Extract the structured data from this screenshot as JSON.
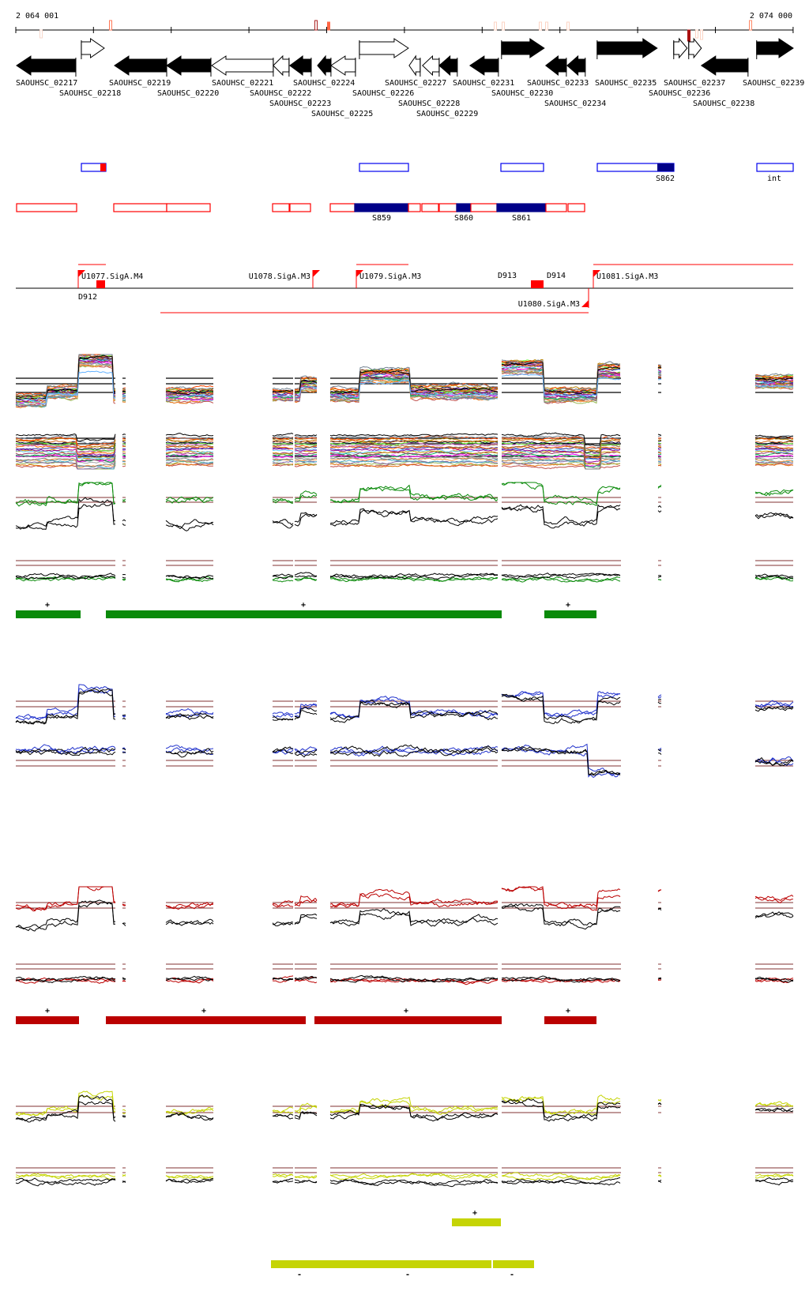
{
  "axis": {
    "start_label": "2 064 001",
    "end_label": "2 074 000",
    "start_bp": 2064001,
    "end_bp": 2074000,
    "tick_interval_bp": 1000
  },
  "genes": [
    {
      "label": "SAOUHSC_02217",
      "start": 2064011,
      "end": 2064773,
      "strand": "-",
      "filled": true
    },
    {
      "label": "SAOUHSC_02218",
      "start": 2064844,
      "end": 2065139,
      "strand": "+",
      "filled": false
    },
    {
      "label": "SAOUHSC_02219",
      "start": 2065271,
      "end": 2065942,
      "strand": "-",
      "filled": true
    },
    {
      "label": "SAOUHSC_02220",
      "start": 2065942,
      "end": 2066511,
      "strand": "-",
      "filled": true
    },
    {
      "label": "SAOUHSC_02221",
      "start": 2066521,
      "end": 2067313,
      "strand": "-",
      "filled": false
    },
    {
      "label": "SAOUHSC_02222",
      "start": 2067313,
      "end": 2067516,
      "strand": "-",
      "filled": false
    },
    {
      "label": "SAOUHSC_02223",
      "start": 2067526,
      "end": 2067801,
      "strand": "-",
      "filled": true
    },
    {
      "label": "SAOUHSC_02224",
      "start": 2067882,
      "end": 2068055,
      "strand": "-",
      "filled": true
    },
    {
      "label": "SAOUHSC_02225",
      "start": 2068055,
      "end": 2068370,
      "strand": "-",
      "filled": false
    },
    {
      "label": "SAOUHSC_02226",
      "start": 2068421,
      "end": 2069051,
      "strand": "+",
      "filled": false
    },
    {
      "label": "SAOUHSC_02227",
      "start": 2069061,
      "end": 2069203,
      "strand": "-",
      "filled": false
    },
    {
      "label": "SAOUHSC_02228",
      "start": 2069233,
      "end": 2069447,
      "strand": "-",
      "filled": false
    },
    {
      "label": "SAOUHSC_02229",
      "start": 2069447,
      "end": 2069680,
      "strand": "-",
      "filled": true
    },
    {
      "label": "SAOUHSC_02231",
      "start": 2069843,
      "end": 2070209,
      "strand": "-",
      "filled": true
    },
    {
      "label": "SAOUHSC_02230",
      "start": 2070249,
      "end": 2070798,
      "strand": "+",
      "filled": true
    },
    {
      "label": "SAOUHSC_02233",
      "start": 2070818,
      "end": 2071083,
      "strand": "-",
      "filled": true
    },
    {
      "label": "SAOUHSC_02234",
      "start": 2071093,
      "end": 2071326,
      "strand": "-",
      "filled": true
    },
    {
      "label": "SAOUHSC_02235",
      "start": 2071479,
      "end": 2072251,
      "strand": "+",
      "filled": true
    },
    {
      "label": "SAOUHSC_02236",
      "start": 2072464,
      "end": 2072637,
      "strand": "+",
      "filled": false
    },
    {
      "label": "SAOUHSC_02237",
      "start": 2072657,
      "end": 2072820,
      "strand": "+",
      "filled": false
    },
    {
      "label": "SAOUHSC_02238",
      "start": 2072820,
      "end": 2073420,
      "strand": "-",
      "filled": true
    },
    {
      "label": "SAOUHSC_02239",
      "start": 2073531,
      "end": 2074001,
      "strand": "+",
      "filled": true
    }
  ],
  "blue_regions": [
    {
      "label": "",
      "highlight": "red"
    },
    {
      "label": "",
      "highlight": ""
    },
    {
      "label": "",
      "highlight": ""
    },
    {
      "label": "S862",
      "highlight": "navy"
    },
    {
      "label": "int",
      "highlight": ""
    }
  ],
  "red_region_labels": [
    "S859",
    "S860",
    "S861"
  ],
  "promoters": [
    {
      "label": "U1077.SigA.M4",
      "strand": "+"
    },
    {
      "label": "U1078.SigA.M3",
      "strand": "+"
    },
    {
      "label": "U1079.SigA.M3",
      "strand": "+"
    },
    {
      "label": "U1081.SigA.M3",
      "strand": "+"
    },
    {
      "label": "U1080.SigA.M3",
      "strand": "-"
    }
  ],
  "terminators": [
    {
      "label": "D912"
    },
    {
      "label": "D913"
    },
    {
      "label": "D914"
    }
  ],
  "condition_groups": [
    {
      "color": "#0a8a0a",
      "bar_rows": [
        {
          "strand_label": "+",
          "count": 3
        }
      ]
    },
    {
      "color": "#2233cc",
      "bar_rows": []
    },
    {
      "color": "#bb0000",
      "bar_rows": [
        {
          "strand_label": "+",
          "count": 4
        }
      ]
    },
    {
      "color": "#c5d405",
      "bar_rows": [
        {
          "strand_label": "+",
          "count": 1
        },
        {
          "strand_label": "-",
          "count": 3
        }
      ]
    }
  ],
  "colors": {
    "gene": "#000000",
    "blue_region": "#0000ee",
    "red_region": "#ff0000",
    "navy_fill": "#000088",
    "promoter": "#ff0000",
    "reference_line_dark": "#000000",
    "reference_line_brown": "#9b5a5a"
  }
}
